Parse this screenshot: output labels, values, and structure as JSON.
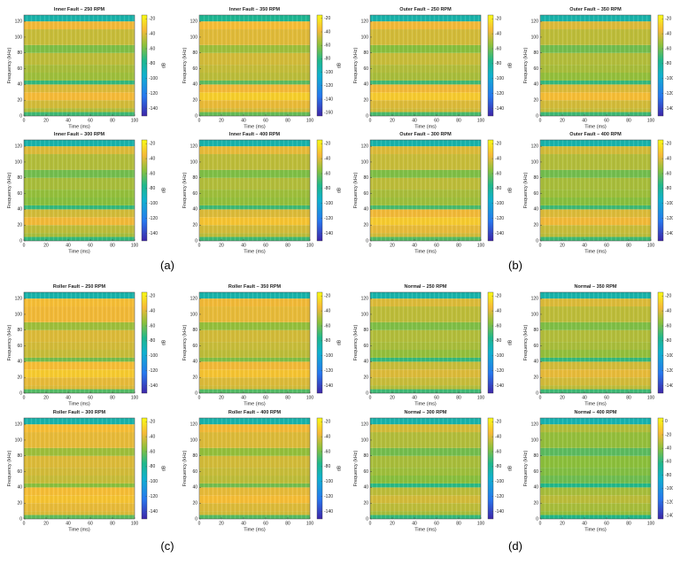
{
  "figure_labels": [
    "(a)",
    "(b)",
    "(c)",
    "(d)"
  ],
  "chart_data": [
    {
      "type": "heatmap",
      "title": "Inner Fault – 250 RPM",
      "x_label": "Time (ms)",
      "y_label": "Frequency (kHz)",
      "xlim": [
        0,
        100
      ],
      "xticks": [
        0,
        20,
        40,
        60,
        80,
        100
      ],
      "ylim": [
        0,
        128
      ],
      "yticks": [
        0,
        20,
        40,
        60,
        80,
        100,
        120
      ],
      "bands": [
        0,
        5,
        10,
        20,
        30,
        40,
        45,
        55,
        65,
        80,
        90,
        110,
        120,
        128
      ],
      "values": [
        -70,
        -48,
        -42,
        -35,
        -40,
        -72,
        -52,
        -50,
        -46,
        -58,
        -44,
        -36,
        -85
      ],
      "clim": [
        -150,
        -15
      ],
      "cticks": [
        -140,
        -120,
        -100,
        -80,
        -60,
        -40,
        -20
      ],
      "clabel": "dB"
    },
    {
      "type": "heatmap",
      "title": "Inner Fault – 350 RPM",
      "x_label": "Time (ms)",
      "y_label": "Frequency (kHz)",
      "xlim": [
        0,
        100
      ],
      "xticks": [
        0,
        20,
        40,
        60,
        80,
        100
      ],
      "ylim": [
        0,
        128
      ],
      "yticks": [
        0,
        20,
        40,
        60,
        80,
        100,
        120
      ],
      "bands": [
        0,
        5,
        10,
        20,
        30,
        40,
        45,
        55,
        65,
        80,
        90,
        110,
        120,
        128
      ],
      "values": [
        -68,
        -44,
        -40,
        -30,
        -38,
        -70,
        -50,
        -48,
        -45,
        -56,
        -42,
        -36,
        -85
      ],
      "clim": [
        -165,
        -15
      ],
      "cticks": [
        -160,
        -140,
        -120,
        -100,
        -80,
        -60,
        -40,
        -20
      ],
      "clabel": "dB"
    },
    {
      "type": "heatmap",
      "title": "Inner Fault – 300 RPM",
      "x_label": "Time (ms)",
      "y_label": "Frequency (kHz)",
      "xlim": [
        0,
        100
      ],
      "xticks": [
        0,
        20,
        40,
        60,
        80,
        100
      ],
      "ylim": [
        0,
        128
      ],
      "yticks": [
        0,
        20,
        40,
        60,
        80,
        100,
        120
      ],
      "bands": [
        0,
        5,
        10,
        20,
        30,
        40,
        45,
        55,
        65,
        80,
        90,
        110,
        120,
        128
      ],
      "values": [
        -72,
        -50,
        -46,
        -36,
        -42,
        -72,
        -56,
        -54,
        -50,
        -60,
        -48,
        -40,
        -85
      ],
      "clim": [
        -150,
        -15
      ],
      "cticks": [
        -140,
        -120,
        -100,
        -80,
        -60,
        -40,
        -20
      ],
      "clabel": "dB"
    },
    {
      "type": "heatmap",
      "title": "Inner Fault – 400 RPM",
      "x_label": "Time (ms)",
      "y_label": "Frequency (kHz)",
      "xlim": [
        0,
        100
      ],
      "xticks": [
        0,
        20,
        40,
        60,
        80,
        100
      ],
      "ylim": [
        0,
        128
      ],
      "yticks": [
        0,
        20,
        40,
        60,
        80,
        100,
        120
      ],
      "bands": [
        0,
        5,
        10,
        20,
        30,
        40,
        45,
        55,
        65,
        80,
        90,
        110,
        120,
        128
      ],
      "values": [
        -70,
        -46,
        -42,
        -32,
        -40,
        -70,
        -54,
        -52,
        -48,
        -58,
        -46,
        -38,
        -85
      ],
      "clim": [
        -150,
        -15
      ],
      "cticks": [
        -140,
        -120,
        -100,
        -80,
        -60,
        -40,
        -20
      ],
      "clabel": "dB"
    },
    {
      "type": "heatmap",
      "title": "Outer Fault – 250 RPM",
      "x_label": "Time (ms)",
      "y_label": "Frequency (kHz)",
      "xlim": [
        0,
        100
      ],
      "xticks": [
        0,
        20,
        40,
        60,
        80,
        100
      ],
      "ylim": [
        0,
        128
      ],
      "yticks": [
        0,
        20,
        40,
        60,
        80,
        100,
        120
      ],
      "bands": [
        0,
        5,
        10,
        20,
        30,
        40,
        45,
        55,
        65,
        80,
        90,
        110,
        120,
        128
      ],
      "values": [
        -68,
        -42,
        -40,
        -30,
        -36,
        -70,
        -50,
        -48,
        -44,
        -56,
        -42,
        -36,
        -85
      ],
      "clim": [
        -150,
        -15
      ],
      "cticks": [
        -140,
        -120,
        -100,
        -80,
        -60,
        -40,
        -20
      ],
      "clabel": "dB"
    },
    {
      "type": "heatmap",
      "title": "Outer Fault – 350 RPM",
      "x_label": "Time (ms)",
      "y_label": "Frequency (kHz)",
      "xlim": [
        0,
        100
      ],
      "xticks": [
        0,
        20,
        40,
        60,
        80,
        100
      ],
      "ylim": [
        0,
        128
      ],
      "yticks": [
        0,
        20,
        40,
        60,
        80,
        100,
        120
      ],
      "bands": [
        0,
        5,
        10,
        20,
        30,
        40,
        45,
        55,
        65,
        80,
        90,
        110,
        120,
        128
      ],
      "values": [
        -70,
        -44,
        -42,
        -34,
        -40,
        -72,
        -54,
        -50,
        -48,
        -60,
        -46,
        -40,
        -85
      ],
      "clim": [
        -150,
        -15
      ],
      "cticks": [
        -140,
        -120,
        -100,
        -80,
        -60,
        -40,
        -20
      ],
      "clabel": "dB"
    },
    {
      "type": "heatmap",
      "title": "Outer Fault – 300 RPM",
      "x_label": "Time (ms)",
      "y_label": "Frequency (kHz)",
      "xlim": [
        0,
        100
      ],
      "xticks": [
        0,
        20,
        40,
        60,
        80,
        100
      ],
      "ylim": [
        0,
        128
      ],
      "yticks": [
        0,
        20,
        40,
        60,
        80,
        100,
        120
      ],
      "bands": [
        0,
        5,
        10,
        20,
        30,
        40,
        45,
        55,
        65,
        80,
        90,
        110,
        120,
        128
      ],
      "values": [
        -66,
        -42,
        -38,
        -30,
        -36,
        -68,
        -52,
        -50,
        -46,
        -58,
        -44,
        -40,
        -85
      ],
      "clim": [
        -150,
        -15
      ],
      "cticks": [
        -140,
        -120,
        -100,
        -80,
        -60,
        -40,
        -20
      ],
      "clabel": "dB"
    },
    {
      "type": "heatmap",
      "title": "Outer Fault – 400 RPM",
      "x_label": "Time (ms)",
      "y_label": "Frequency (kHz)",
      "xlim": [
        0,
        100
      ],
      "xticks": [
        0,
        20,
        40,
        60,
        80,
        100
      ],
      "ylim": [
        0,
        128
      ],
      "yticks": [
        0,
        20,
        40,
        60,
        80,
        100,
        120
      ],
      "bands": [
        0,
        5,
        10,
        20,
        30,
        40,
        45,
        55,
        65,
        80,
        90,
        110,
        120,
        128
      ],
      "values": [
        -70,
        -46,
        -44,
        -36,
        -40,
        -70,
        -56,
        -52,
        -50,
        -60,
        -48,
        -42,
        -85
      ],
      "clim": [
        -150,
        -15
      ],
      "cticks": [
        -140,
        -120,
        -100,
        -80,
        -60,
        -40,
        -20
      ],
      "clabel": "dB"
    },
    {
      "type": "heatmap",
      "title": "Roller Fault – 250 RPM",
      "x_label": "Time (ms)",
      "y_label": "Frequency (kHz)",
      "xlim": [
        0,
        100
      ],
      "xticks": [
        0,
        20,
        40,
        60,
        80,
        100
      ],
      "ylim": [
        0,
        128
      ],
      "yticks": [
        0,
        20,
        40,
        60,
        80,
        100,
        120
      ],
      "bands": [
        0,
        5,
        10,
        20,
        30,
        40,
        45,
        55,
        65,
        80,
        90,
        110,
        120,
        128
      ],
      "values": [
        -66,
        -40,
        -38,
        -30,
        -34,
        -60,
        -44,
        -42,
        -40,
        -52,
        -36,
        -34,
        -85
      ],
      "clim": [
        -150,
        -15
      ],
      "cticks": [
        -140,
        -120,
        -100,
        -80,
        -60,
        -40,
        -20
      ],
      "clabel": "dB"
    },
    {
      "type": "heatmap",
      "title": "Roller Fault – 350 RPM",
      "x_label": "Time (ms)",
      "y_label": "Frequency (kHz)",
      "xlim": [
        0,
        100
      ],
      "xticks": [
        0,
        20,
        40,
        60,
        80,
        100
      ],
      "ylim": [
        0,
        128
      ],
      "yticks": [
        0,
        20,
        40,
        60,
        80,
        100,
        120
      ],
      "bands": [
        0,
        5,
        10,
        20,
        30,
        40,
        45,
        55,
        65,
        80,
        90,
        110,
        120,
        128
      ],
      "values": [
        -66,
        -42,
        -40,
        -32,
        -36,
        -58,
        -46,
        -44,
        -42,
        -54,
        -38,
        -36,
        -85
      ],
      "clim": [
        -150,
        -15
      ],
      "cticks": [
        -140,
        -120,
        -100,
        -80,
        -60,
        -40,
        -20
      ],
      "clabel": "dB"
    },
    {
      "type": "heatmap",
      "title": "Roller Fault – 300 RPM",
      "x_label": "Time (ms)",
      "y_label": "Frequency (kHz)",
      "xlim": [
        0,
        100
      ],
      "xticks": [
        0,
        20,
        40,
        60,
        80,
        100
      ],
      "ylim": [
        0,
        128
      ],
      "yticks": [
        0,
        20,
        40,
        60,
        80,
        100,
        120
      ],
      "bands": [
        0,
        5,
        10,
        20,
        30,
        40,
        45,
        55,
        65,
        80,
        90,
        110,
        120,
        128
      ],
      "values": [
        -64,
        -40,
        -38,
        -32,
        -34,
        -56,
        -44,
        -42,
        -40,
        -52,
        -38,
        -34,
        -85
      ],
      "clim": [
        -150,
        -15
      ],
      "cticks": [
        -140,
        -120,
        -100,
        -80,
        -60,
        -40,
        -20
      ],
      "clabel": "dB"
    },
    {
      "type": "heatmap",
      "title": "Roller Fault – 400 RPM",
      "x_label": "Time (ms)",
      "y_label": "Frequency (kHz)",
      "xlim": [
        0,
        100
      ],
      "xticks": [
        0,
        20,
        40,
        60,
        80,
        100
      ],
      "ylim": [
        0,
        128
      ],
      "yticks": [
        0,
        20,
        40,
        60,
        80,
        100,
        120
      ],
      "bands": [
        0,
        5,
        10,
        20,
        30,
        40,
        45,
        55,
        65,
        80,
        90,
        110,
        120,
        128
      ],
      "values": [
        -66,
        -42,
        -40,
        -34,
        -38,
        -60,
        -46,
        -44,
        -42,
        -54,
        -40,
        -36,
        -85
      ],
      "clim": [
        -150,
        -15
      ],
      "cticks": [
        -140,
        -120,
        -100,
        -80,
        -60,
        -40,
        -20
      ],
      "clabel": "dB"
    },
    {
      "type": "heatmap",
      "title": "Normal – 250 RPM",
      "x_label": "Time (ms)",
      "y_label": "Frequency (kHz)",
      "xlim": [
        0,
        100
      ],
      "xticks": [
        0,
        20,
        40,
        60,
        80,
        100
      ],
      "ylim": [
        0,
        128
      ],
      "yticks": [
        0,
        20,
        40,
        60,
        80,
        100,
        120
      ],
      "bands": [
        0,
        5,
        10,
        20,
        30,
        40,
        45,
        55,
        65,
        80,
        90,
        110,
        120,
        128
      ],
      "values": [
        -70,
        -48,
        -44,
        -40,
        -44,
        -72,
        -54,
        -50,
        -48,
        -58,
        -46,
        -40,
        -85
      ],
      "clim": [
        -150,
        -15
      ],
      "cticks": [
        -140,
        -120,
        -100,
        -80,
        -60,
        -40,
        -20
      ],
      "clabel": "dB"
    },
    {
      "type": "heatmap",
      "title": "Normal – 350 RPM",
      "x_label": "Time (ms)",
      "y_label": "Frequency (kHz)",
      "xlim": [
        0,
        100
      ],
      "xticks": [
        0,
        20,
        40,
        60,
        80,
        100
      ],
      "ylim": [
        0,
        128
      ],
      "yticks": [
        0,
        20,
        40,
        60,
        80,
        100,
        120
      ],
      "bands": [
        0,
        5,
        10,
        20,
        30,
        40,
        45,
        55,
        65,
        80,
        90,
        110,
        120,
        128
      ],
      "values": [
        -70,
        -46,
        -42,
        -38,
        -42,
        -72,
        -54,
        -50,
        -48,
        -58,
        -46,
        -40,
        -85
      ],
      "clim": [
        -150,
        -15
      ],
      "cticks": [
        -140,
        -120,
        -100,
        -80,
        -60,
        -40,
        -20
      ],
      "clabel": "dB"
    },
    {
      "type": "heatmap",
      "title": "Normal – 300 RPM",
      "x_label": "Time (ms)",
      "y_label": "Frequency (kHz)",
      "xlim": [
        0,
        100
      ],
      "xticks": [
        0,
        20,
        40,
        60,
        80,
        100
      ],
      "ylim": [
        0,
        128
      ],
      "yticks": [
        0,
        20,
        40,
        60,
        80,
        100,
        120
      ],
      "bands": [
        0,
        5,
        10,
        20,
        30,
        40,
        45,
        55,
        65,
        80,
        90,
        110,
        120,
        128
      ],
      "values": [
        -72,
        -50,
        -46,
        -42,
        -46,
        -74,
        -56,
        -52,
        -50,
        -60,
        -48,
        -42,
        -85
      ],
      "clim": [
        -150,
        -15
      ],
      "cticks": [
        -140,
        -120,
        -100,
        -80,
        -60,
        -40,
        -20
      ],
      "clabel": "dB"
    },
    {
      "type": "heatmap",
      "title": "Normal – 400 RPM",
      "x_label": "Time (ms)",
      "y_label": "Frequency (kHz)",
      "xlim": [
        0,
        100
      ],
      "xticks": [
        0,
        20,
        40,
        60,
        80,
        100
      ],
      "ylim": [
        0,
        128
      ],
      "yticks": [
        0,
        20,
        40,
        60,
        80,
        100,
        120
      ],
      "bands": [
        0,
        5,
        10,
        20,
        30,
        40,
        45,
        55,
        65,
        80,
        90,
        110,
        120,
        128
      ],
      "values": [
        -62,
        -38,
        -34,
        -30,
        -34,
        -62,
        -46,
        -42,
        -40,
        -50,
        -38,
        -32,
        -75
      ],
      "clim": [
        -145,
        5
      ],
      "cticks": [
        -140,
        -120,
        -100,
        -80,
        -60,
        -40,
        -20,
        0
      ],
      "clabel": "dB"
    }
  ]
}
